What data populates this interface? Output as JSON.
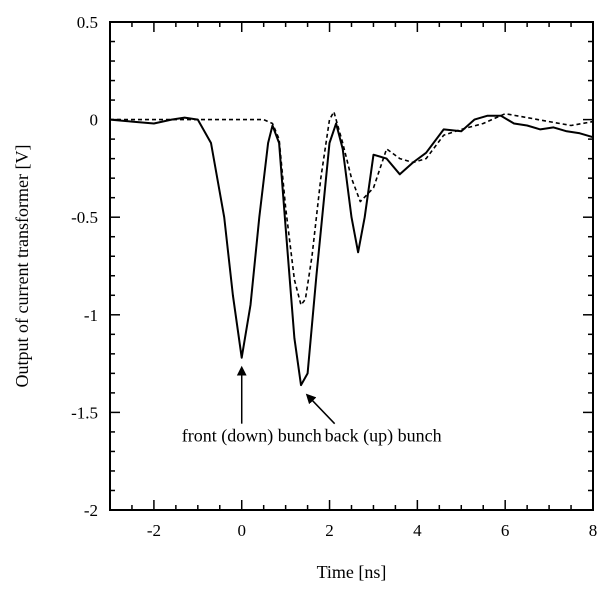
{
  "chart_data": {
    "type": "line",
    "xlabel": "Time [ns]",
    "ylabel": "Output of current transformer [V]",
    "xlim": [
      -3,
      8
    ],
    "ylim": [
      -2,
      0.5
    ],
    "xticks": [
      -2,
      0,
      2,
      4,
      6,
      8
    ],
    "yticks": [
      0.5,
      0,
      -0.5,
      -1,
      -1.5,
      -2
    ],
    "xtick_labels": [
      "-2",
      "0",
      "2",
      "4",
      "6",
      "8"
    ],
    "ytick_labels": [
      "0.5",
      "0",
      "-0.5",
      "-1",
      "-1.5",
      "-2"
    ],
    "grid": false,
    "series": [
      {
        "style": "solid",
        "color": "#000000",
        "x": [
          -3.0,
          -2.5,
          -2.0,
          -1.6,
          -1.3,
          -1.0,
          -0.7,
          -0.4,
          -0.2,
          0.0,
          0.2,
          0.4,
          0.6,
          0.7,
          0.85,
          1.0,
          1.2,
          1.35,
          1.5,
          1.7,
          2.0,
          2.15,
          2.3,
          2.5,
          2.65,
          2.8,
          3.0,
          3.3,
          3.6,
          3.9,
          4.2,
          4.6,
          5.0,
          5.3,
          5.6,
          5.9,
          6.2,
          6.5,
          6.8,
          7.1,
          7.4,
          7.7,
          8.0
        ],
        "y": [
          0.0,
          -0.01,
          -0.02,
          0.0,
          0.01,
          0.0,
          -0.12,
          -0.5,
          -0.9,
          -1.22,
          -0.95,
          -0.5,
          -0.12,
          -0.03,
          -0.12,
          -0.55,
          -1.12,
          -1.36,
          -1.3,
          -0.8,
          -0.12,
          -0.02,
          -0.15,
          -0.5,
          -0.68,
          -0.5,
          -0.18,
          -0.2,
          -0.28,
          -0.22,
          -0.17,
          -0.05,
          -0.06,
          0.0,
          0.02,
          0.02,
          -0.02,
          -0.03,
          -0.05,
          -0.04,
          -0.06,
          -0.07,
          -0.09
        ]
      },
      {
        "style": "dashed",
        "color": "#000000",
        "x": [
          -3.0,
          -2.0,
          -1.0,
          0.0,
          0.5,
          0.7,
          0.85,
          1.0,
          1.2,
          1.35,
          1.45,
          1.6,
          1.8,
          2.0,
          2.1,
          2.3,
          2.5,
          2.7,
          3.0,
          3.3,
          3.6,
          3.9,
          4.2,
          4.6,
          5.0,
          5.5,
          6.0,
          6.5,
          7.0,
          7.5,
          8.0
        ],
        "y": [
          0.0,
          0.0,
          0.0,
          0.0,
          0.0,
          -0.02,
          -0.1,
          -0.45,
          -0.82,
          -0.95,
          -0.92,
          -0.7,
          -0.3,
          0.0,
          0.04,
          -0.12,
          -0.3,
          -0.42,
          -0.35,
          -0.15,
          -0.2,
          -0.22,
          -0.2,
          -0.08,
          -0.05,
          -0.02,
          0.03,
          0.01,
          -0.01,
          -0.03,
          -0.01
        ]
      }
    ],
    "annotations": [
      {
        "text": "front (down) bunch",
        "point": [
          0.0,
          -1.22
        ],
        "text_at": [
          0.0,
          -1.65
        ]
      },
      {
        "text": "back (up) bunch",
        "point": [
          1.4,
          -1.36
        ],
        "text_at": [
          2.8,
          -1.65
        ]
      }
    ]
  }
}
